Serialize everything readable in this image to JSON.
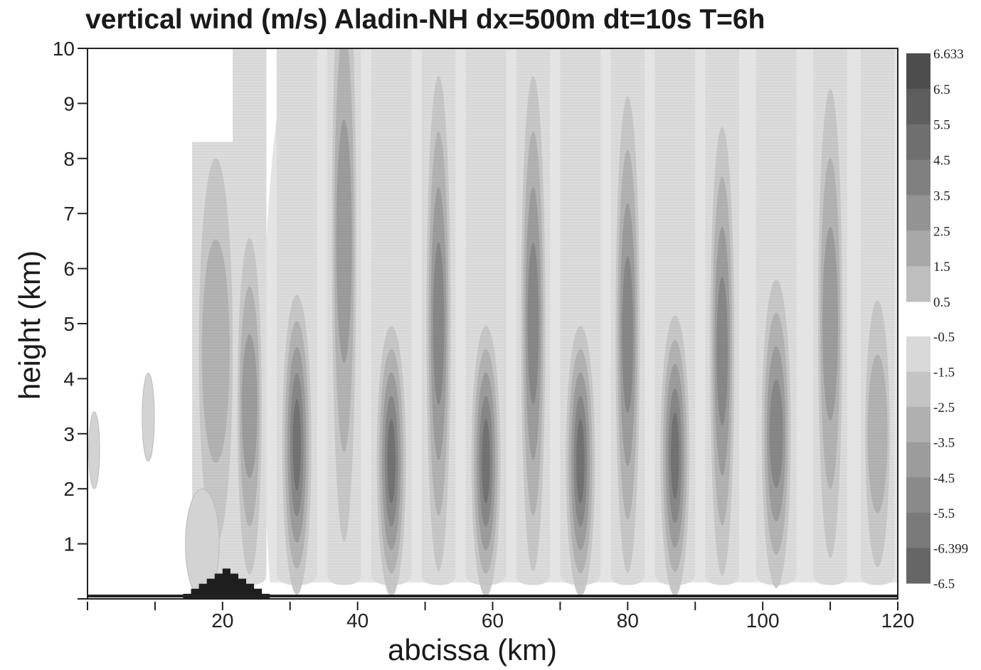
{
  "chart_data": {
    "type": "heatmap",
    "title": "vertical wind (m/s) Aladin-NH dx=500m dt=10s T=6h",
    "xlabel": "abcissa (km)",
    "ylabel": "height (km)",
    "xlim": [
      0,
      120
    ],
    "ylim": [
      0,
      10
    ],
    "x_ticks": [
      "20",
      "40",
      "60",
      "80",
      "100",
      "120"
    ],
    "y_ticks": [
      "1",
      "2",
      "3",
      "4",
      "5",
      "6",
      "7",
      "8",
      "9",
      "10"
    ],
    "colorbar_labels_positive": [
      "6.633",
      "6.5",
      "5.5",
      "4.5",
      "3.5",
      "2.5",
      "1.5",
      "0.5"
    ],
    "colorbar_labels_negative": [
      "-0.5",
      "-1.5",
      "-2.5",
      "-3.5",
      "-4.5",
      "-5.5",
      "-6.399",
      "-6.5"
    ],
    "colorbar_positive_levels": [
      6.633,
      6.5,
      5.5,
      4.5,
      3.5,
      2.5,
      1.5,
      0.5
    ],
    "colorbar_negative_levels": [
      -0.5,
      -1.5,
      -2.5,
      -3.5,
      -4.5,
      -5.5,
      -6.399,
      -6.5
    ],
    "colorbar_colors_positive": [
      "#4d4d4d",
      "#5e5e5e",
      "#6f6f6f",
      "#808080",
      "#939393",
      "#a8a8a8",
      "#bebebe",
      "#d6d6d6"
    ],
    "colorbar_colors_negative": [
      "#d9d9d9",
      "#c4c4c4",
      "#b0b0b0",
      "#9c9c9c",
      "#8a8a8a",
      "#7a7a7a",
      "#666666",
      "#555555"
    ],
    "mountain": {
      "center_km": 20,
      "peak_height_km": 0.55,
      "half_width_km": 7
    },
    "wave_bands": [
      {
        "x": 19,
        "w": 7,
        "top": 8.0,
        "core_y": 4.5,
        "peak": 1.5
      },
      {
        "x": 24,
        "w": 5,
        "top": 10.0,
        "core_y": 3.5,
        "peak": 2.5
      },
      {
        "x": 31,
        "w": 6,
        "top": 10.0,
        "core_y": 2.8,
        "peak": 4.5
      },
      {
        "x": 38,
        "w": 5,
        "top": 10.0,
        "core_y": 6.5,
        "peak": 3.0
      },
      {
        "x": 45,
        "w": 6,
        "top": 10.0,
        "core_y": 2.5,
        "peak": 4.5
      },
      {
        "x": 52,
        "w": 5,
        "top": 10.0,
        "core_y": 5.0,
        "peak": 3.5
      },
      {
        "x": 59,
        "w": 6,
        "top": 10.0,
        "core_y": 2.5,
        "peak": 5.0
      },
      {
        "x": 66,
        "w": 5,
        "top": 10.0,
        "core_y": 5.0,
        "peak": 3.5
      },
      {
        "x": 73,
        "w": 6,
        "top": 10.0,
        "core_y": 2.5,
        "peak": 5.0
      },
      {
        "x": 80,
        "w": 5,
        "top": 10.0,
        "core_y": 4.8,
        "peak": 3.5
      },
      {
        "x": 87,
        "w": 6,
        "top": 10.0,
        "core_y": 2.6,
        "peak": 5.0
      },
      {
        "x": 94,
        "w": 5,
        "top": 10.0,
        "core_y": 4.5,
        "peak": 3.5
      },
      {
        "x": 102,
        "w": 6,
        "top": 10.0,
        "core_y": 3.0,
        "peak": 4.0
      },
      {
        "x": 110,
        "w": 5,
        "top": 10.0,
        "core_y": 5.0,
        "peak": 3.0
      },
      {
        "x": 117,
        "w": 5,
        "top": 10.0,
        "core_y": 3.0,
        "peak": 2.0
      }
    ],
    "small_features": [
      {
        "x": 1,
        "y": 2.7,
        "rx": 0.8,
        "ry": 0.7
      },
      {
        "x": 9,
        "y": 3.3,
        "rx": 0.9,
        "ry": 0.8
      },
      {
        "x": 17,
        "y": 1.0,
        "rx": 2.5,
        "ry": 1.0
      }
    ]
  }
}
